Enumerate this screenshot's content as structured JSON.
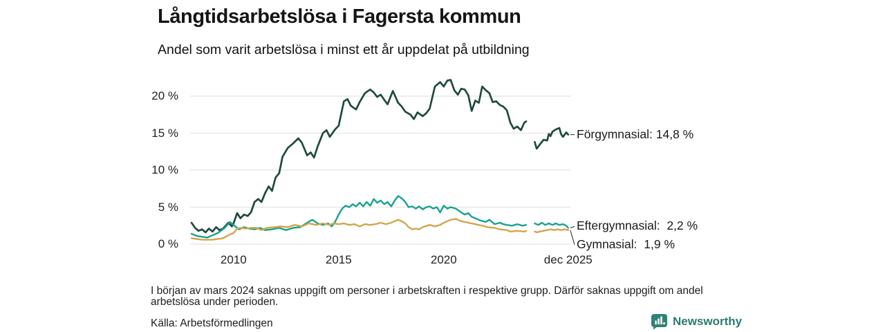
{
  "header": {
    "title": "Långtidsarbetslösa i Fagersta kommun",
    "subtitle": "Andel som varit arbetslösa i minst ett år uppdelat på utbildning"
  },
  "footer": {
    "note": "I början av mars 2024 saknas uppgift om personer i arbetskraften i respektive grupp. Därför saknas uppgift om andel arbetslösa under perioden.",
    "source": "Källa: Arbetsförmedlingen",
    "brand": "Newsworthy",
    "brand_icon": "bar-chart-badge-icon",
    "brand_color": "#2b7a70"
  },
  "chart_data": {
    "type": "line",
    "title": "Långtidsarbetslösa i Fagersta kommun",
    "subtitle": "Andel som varit arbetslösa i minst ett år uppdelat på utbildning",
    "grid": true,
    "gridline_color": "#e4e4e4",
    "x_axis": {
      "range": [
        2008,
        2025.92
      ],
      "ticks": [
        {
          "label": "2010",
          "x": 2010
        },
        {
          "label": "2015",
          "x": 2015
        },
        {
          "label": "2020",
          "x": 2020
        },
        {
          "label": "dec 2025",
          "x": 2025.92
        }
      ]
    },
    "y_axis": {
      "range": [
        0,
        22.5
      ],
      "ticks": [
        0,
        5,
        10,
        15,
        20
      ],
      "suffix": " %"
    },
    "legend_position": "right-end-labels",
    "data_gap": "inga värden ca dec 2023–apr 2024",
    "series": [
      {
        "name": "Förgymnasial",
        "label": "Förgymnasial: 14,8 %",
        "last_value": 14.8,
        "color": "#1e4a3c",
        "width": 2.7,
        "label_dy": -11,
        "points": [
          [
            2008.0,
            2.9
          ],
          [
            2008.17,
            2.2
          ],
          [
            2008.33,
            1.8
          ],
          [
            2008.5,
            2.0
          ],
          [
            2008.67,
            1.6
          ],
          [
            2008.83,
            2.1
          ],
          [
            2009.0,
            1.7
          ],
          [
            2009.17,
            2.3
          ],
          [
            2009.33,
            1.9
          ],
          [
            2009.5,
            2.1
          ],
          [
            2009.75,
            2.9
          ],
          [
            2009.92,
            2.4
          ],
          [
            2010.0,
            2.8
          ],
          [
            2010.17,
            4.2
          ],
          [
            2010.33,
            3.5
          ],
          [
            2010.5,
            4.0
          ],
          [
            2010.67,
            3.8
          ],
          [
            2010.83,
            4.3
          ],
          [
            2011.0,
            5.7
          ],
          [
            2011.17,
            6.1
          ],
          [
            2011.33,
            5.7
          ],
          [
            2011.5,
            6.9
          ],
          [
            2011.67,
            7.8
          ],
          [
            2011.83,
            7.2
          ],
          [
            2012.0,
            9.0
          ],
          [
            2012.17,
            9.6
          ],
          [
            2012.33,
            11.8
          ],
          [
            2012.58,
            13.0
          ],
          [
            2012.83,
            13.6
          ],
          [
            2013.08,
            14.3
          ],
          [
            2013.25,
            13.7
          ],
          [
            2013.5,
            12.0
          ],
          [
            2013.67,
            12.4
          ],
          [
            2013.83,
            11.7
          ],
          [
            2014.0,
            13.2
          ],
          [
            2014.25,
            15.0
          ],
          [
            2014.42,
            15.4
          ],
          [
            2014.58,
            14.5
          ],
          [
            2014.83,
            15.5
          ],
          [
            2015.0,
            16.0
          ],
          [
            2015.25,
            19.3
          ],
          [
            2015.42,
            19.6
          ],
          [
            2015.58,
            18.7
          ],
          [
            2015.83,
            18.2
          ],
          [
            2016.0,
            19.2
          ],
          [
            2016.25,
            20.4
          ],
          [
            2016.5,
            20.9
          ],
          [
            2016.67,
            20.5
          ],
          [
            2016.83,
            19.9
          ],
          [
            2017.0,
            20.2
          ],
          [
            2017.17,
            19.5
          ],
          [
            2017.33,
            18.9
          ],
          [
            2017.58,
            20.7
          ],
          [
            2017.83,
            19.1
          ],
          [
            2018.0,
            18.6
          ],
          [
            2018.17,
            17.9
          ],
          [
            2018.42,
            17.5
          ],
          [
            2018.58,
            16.9
          ],
          [
            2018.75,
            17.8
          ],
          [
            2019.0,
            17.3
          ],
          [
            2019.17,
            17.7
          ],
          [
            2019.33,
            18.3
          ],
          [
            2019.58,
            21.3
          ],
          [
            2019.83,
            21.9
          ],
          [
            2020.0,
            21.3
          ],
          [
            2020.17,
            22.1
          ],
          [
            2020.33,
            22.2
          ],
          [
            2020.5,
            20.8
          ],
          [
            2020.67,
            20.2
          ],
          [
            2020.83,
            21.0
          ],
          [
            2021.0,
            20.9
          ],
          [
            2021.17,
            20.1
          ],
          [
            2021.33,
            18.0
          ],
          [
            2021.5,
            19.4
          ],
          [
            2021.67,
            19.1
          ],
          [
            2021.83,
            21.3
          ],
          [
            2022.0,
            20.8
          ],
          [
            2022.17,
            20.4
          ],
          [
            2022.33,
            19.2
          ],
          [
            2022.5,
            19.3
          ],
          [
            2022.67,
            18.8
          ],
          [
            2022.83,
            18.6
          ],
          [
            2023.0,
            18.1
          ],
          [
            2023.17,
            16.4
          ],
          [
            2023.33,
            15.6
          ],
          [
            2023.5,
            15.9
          ],
          [
            2023.67,
            15.4
          ],
          [
            2023.83,
            16.4
          ],
          [
            2023.92,
            16.6
          ],
          [
            2024.1,
            null
          ],
          [
            2024.33,
            13.8
          ],
          [
            2024.42,
            12.9
          ],
          [
            2024.58,
            13.5
          ],
          [
            2024.75,
            14.1
          ],
          [
            2024.92,
            14.0
          ],
          [
            2025.0,
            14.9
          ],
          [
            2025.08,
            14.6
          ],
          [
            2025.17,
            15.2
          ],
          [
            2025.33,
            15.5
          ],
          [
            2025.5,
            15.7
          ],
          [
            2025.58,
            14.9
          ],
          [
            2025.67,
            14.5
          ],
          [
            2025.83,
            15.1
          ],
          [
            2025.92,
            14.8
          ]
        ]
      },
      {
        "name": "Eftergymnasial",
        "label": "Eftergymnasial:  2,2 %",
        "last_value": 2.2,
        "color": "#18a28d",
        "width": 2.4,
        "label_dy": -13,
        "points": [
          [
            2008.0,
            1.4
          ],
          [
            2008.25,
            1.1
          ],
          [
            2008.5,
            1.0
          ],
          [
            2008.75,
            0.9
          ],
          [
            2009.0,
            1.2
          ],
          [
            2009.25,
            1.5
          ],
          [
            2009.58,
            2.2
          ],
          [
            2009.83,
            3.0
          ],
          [
            2010.0,
            2.6
          ],
          [
            2010.25,
            2.0
          ],
          [
            2010.5,
            2.3
          ],
          [
            2010.75,
            2.1
          ],
          [
            2011.0,
            2.0
          ],
          [
            2011.25,
            2.2
          ],
          [
            2011.5,
            1.9
          ],
          [
            2011.83,
            2.0
          ],
          [
            2012.17,
            2.2
          ],
          [
            2012.5,
            1.9
          ],
          [
            2012.83,
            2.2
          ],
          [
            2013.17,
            2.3
          ],
          [
            2013.5,
            2.9
          ],
          [
            2013.75,
            3.3
          ],
          [
            2014.0,
            2.8
          ],
          [
            2014.25,
            2.6
          ],
          [
            2014.5,
            2.8
          ],
          [
            2014.67,
            2.4
          ],
          [
            2014.83,
            3.0
          ],
          [
            2015.0,
            4.0
          ],
          [
            2015.17,
            4.8
          ],
          [
            2015.33,
            5.2
          ],
          [
            2015.5,
            5.0
          ],
          [
            2015.67,
            5.4
          ],
          [
            2015.83,
            5.1
          ],
          [
            2016.0,
            5.6
          ],
          [
            2016.17,
            5.1
          ],
          [
            2016.33,
            5.7
          ],
          [
            2016.5,
            5.2
          ],
          [
            2016.67,
            6.1
          ],
          [
            2016.83,
            5.6
          ],
          [
            2017.0,
            5.9
          ],
          [
            2017.17,
            5.4
          ],
          [
            2017.33,
            5.7
          ],
          [
            2017.5,
            5.1
          ],
          [
            2017.67,
            5.9
          ],
          [
            2017.83,
            6.5
          ],
          [
            2018.0,
            6.2
          ],
          [
            2018.17,
            5.7
          ],
          [
            2018.33,
            5.0
          ],
          [
            2018.5,
            5.1
          ],
          [
            2018.67,
            4.8
          ],
          [
            2018.83,
            5.1
          ],
          [
            2019.0,
            4.7
          ],
          [
            2019.17,
            5.0
          ],
          [
            2019.33,
            5.1
          ],
          [
            2019.5,
            4.8
          ],
          [
            2019.67,
            5.0
          ],
          [
            2019.83,
            4.3
          ],
          [
            2020.0,
            5.2
          ],
          [
            2020.17,
            4.8
          ],
          [
            2020.33,
            5.0
          ],
          [
            2020.58,
            4.8
          ],
          [
            2020.83,
            4.3
          ],
          [
            2021.0,
            4.0
          ],
          [
            2021.17,
            4.2
          ],
          [
            2021.33,
            3.7
          ],
          [
            2021.5,
            3.5
          ],
          [
            2021.75,
            3.2
          ],
          [
            2022.0,
            3.0
          ],
          [
            2022.17,
            3.3
          ],
          [
            2022.42,
            2.7
          ],
          [
            2022.67,
            2.9
          ],
          [
            2022.83,
            2.7
          ],
          [
            2023.0,
            2.6
          ],
          [
            2023.25,
            2.5
          ],
          [
            2023.5,
            2.7
          ],
          [
            2023.75,
            2.5
          ],
          [
            2023.92,
            2.6
          ],
          [
            2024.1,
            null
          ],
          [
            2024.33,
            2.8
          ],
          [
            2024.5,
            2.6
          ],
          [
            2024.67,
            2.9
          ],
          [
            2024.83,
            2.6
          ],
          [
            2025.0,
            2.8
          ],
          [
            2025.17,
            2.6
          ],
          [
            2025.33,
            2.8
          ],
          [
            2025.5,
            2.6
          ],
          [
            2025.67,
            2.7
          ],
          [
            2025.83,
            2.5
          ],
          [
            2025.92,
            2.2
          ]
        ]
      },
      {
        "name": "Gymnasial",
        "label": "Gymnasial:  1,9 %",
        "last_value": 1.9,
        "color": "#d2a54c",
        "width": 2.4,
        "label_dy": 10,
        "points": [
          [
            2008.0,
            0.8
          ],
          [
            2008.25,
            0.7
          ],
          [
            2008.5,
            0.6
          ],
          [
            2008.75,
            0.6
          ],
          [
            2009.0,
            0.6
          ],
          [
            2009.25,
            0.7
          ],
          [
            2009.5,
            0.8
          ],
          [
            2009.75,
            1.2
          ],
          [
            2010.0,
            1.5
          ],
          [
            2010.17,
            2.1
          ],
          [
            2010.33,
            2.2
          ],
          [
            2010.58,
            2.1
          ],
          [
            2010.83,
            2.2
          ],
          [
            2011.08,
            2.2
          ],
          [
            2011.33,
            1.9
          ],
          [
            2011.58,
            2.2
          ],
          [
            2011.92,
            2.3
          ],
          [
            2012.25,
            2.4
          ],
          [
            2012.58,
            2.3
          ],
          [
            2012.92,
            2.6
          ],
          [
            2013.25,
            2.4
          ],
          [
            2013.58,
            2.8
          ],
          [
            2013.92,
            2.6
          ],
          [
            2014.25,
            2.8
          ],
          [
            2014.58,
            2.6
          ],
          [
            2014.75,
            2.8
          ],
          [
            2015.0,
            2.7
          ],
          [
            2015.25,
            2.8
          ],
          [
            2015.5,
            2.6
          ],
          [
            2015.75,
            2.7
          ],
          [
            2016.0,
            2.4
          ],
          [
            2016.25,
            2.7
          ],
          [
            2016.5,
            2.6
          ],
          [
            2016.75,
            2.7
          ],
          [
            2017.0,
            2.9
          ],
          [
            2017.25,
            2.7
          ],
          [
            2017.5,
            2.9
          ],
          [
            2017.67,
            3.1
          ],
          [
            2017.83,
            3.3
          ],
          [
            2018.0,
            3.1
          ],
          [
            2018.17,
            2.8
          ],
          [
            2018.33,
            2.3
          ],
          [
            2018.5,
            2.0
          ],
          [
            2018.67,
            2.1
          ],
          [
            2018.83,
            2.0
          ],
          [
            2019.0,
            2.3
          ],
          [
            2019.33,
            2.6
          ],
          [
            2019.58,
            2.4
          ],
          [
            2019.83,
            2.6
          ],
          [
            2020.0,
            2.9
          ],
          [
            2020.17,
            3.1
          ],
          [
            2020.33,
            3.3
          ],
          [
            2020.58,
            3.4
          ],
          [
            2020.83,
            3.1
          ],
          [
            2021.17,
            2.9
          ],
          [
            2021.5,
            2.7
          ],
          [
            2021.83,
            2.5
          ],
          [
            2022.08,
            2.3
          ],
          [
            2022.42,
            2.2
          ],
          [
            2022.67,
            2.0
          ],
          [
            2023.0,
            1.9
          ],
          [
            2023.17,
            1.7
          ],
          [
            2023.5,
            1.8
          ],
          [
            2023.83,
            1.7
          ],
          [
            2023.92,
            1.8
          ],
          [
            2024.1,
            null
          ],
          [
            2024.33,
            1.7
          ],
          [
            2024.42,
            1.6
          ],
          [
            2024.58,
            1.7
          ],
          [
            2024.75,
            1.8
          ],
          [
            2024.92,
            1.9
          ],
          [
            2025.08,
            2.0
          ],
          [
            2025.25,
            1.9
          ],
          [
            2025.42,
            2.0
          ],
          [
            2025.58,
            1.9
          ],
          [
            2025.75,
            2.0
          ],
          [
            2025.92,
            1.9
          ]
        ]
      }
    ]
  }
}
